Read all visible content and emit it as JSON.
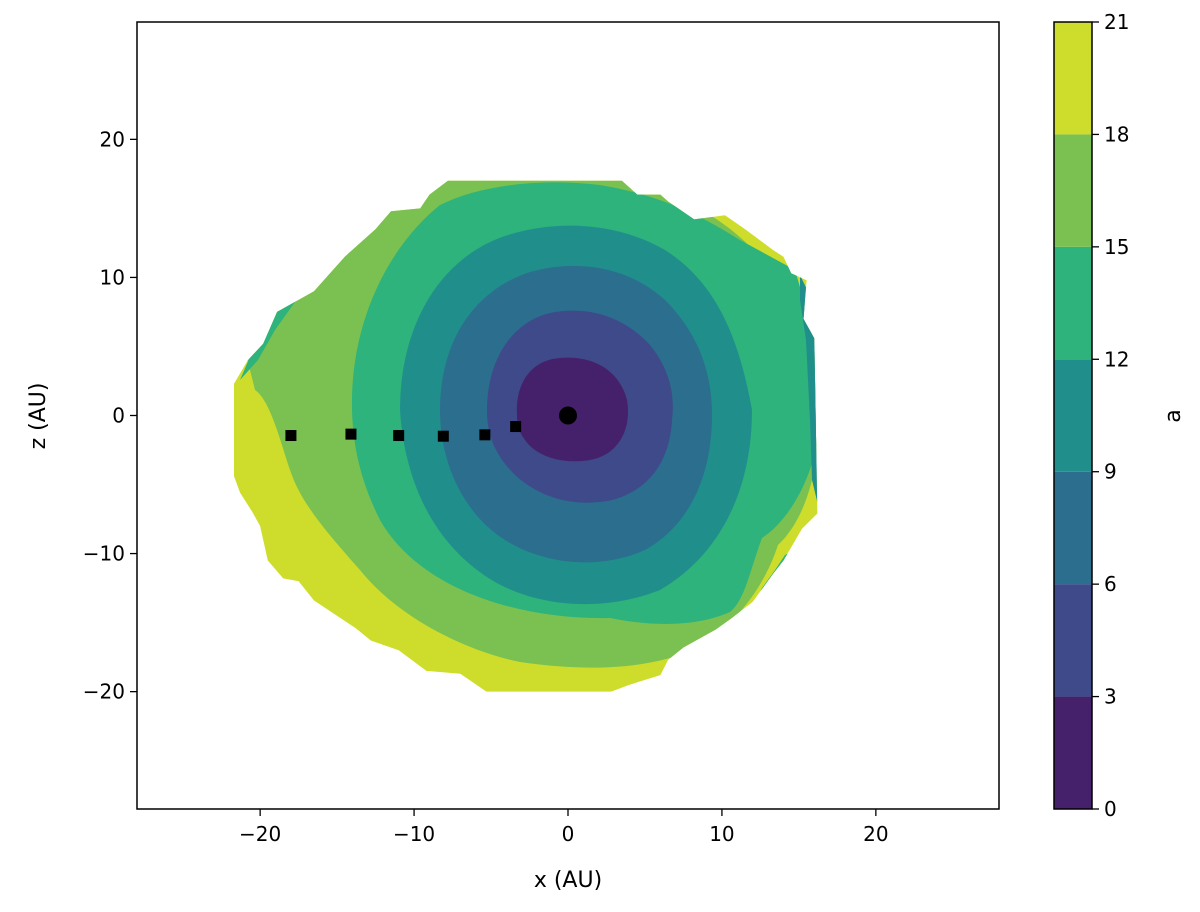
{
  "chart_data": {
    "type": "heatmap",
    "subtype": "filled-contour",
    "xlabel": "x (AU)",
    "ylabel": "z (AU)",
    "xlim": [
      -28,
      28
    ],
    "ylim": [
      -28.5,
      28.5
    ],
    "xticks": [
      -20,
      -10,
      0,
      10,
      20
    ],
    "yticks": [
      -20,
      -10,
      0,
      10,
      20
    ],
    "xtick_labels": [
      "−20",
      "−10",
      "0",
      "10",
      "20"
    ],
    "ytick_labels": [
      "−20",
      "−10",
      "0",
      "10",
      "20"
    ],
    "grid": false,
    "colormap": "viridis",
    "colorbar": {
      "label": "a",
      "levels": [
        0,
        3,
        6,
        9,
        12,
        15,
        18,
        21
      ],
      "tick_labels": [
        "0",
        "3",
        "6",
        "9",
        "12",
        "15",
        "18",
        "21"
      ],
      "colors": [
        "#46216b",
        "#3e4a89",
        "#2c6e8e",
        "#208f8c",
        "#2db37b",
        "#7ac152",
        "#cedd2c"
      ]
    },
    "contour_region": {
      "center": [
        0,
        0
      ],
      "outline": [
        [
          -21.7,
          2.3
        ],
        [
          -20.8,
          4.0
        ],
        [
          -19.8,
          5.2
        ],
        [
          -18.9,
          7.5
        ],
        [
          -16.5,
          9.0
        ],
        [
          -14.5,
          11.5
        ],
        [
          -12.5,
          13.5
        ],
        [
          -11.5,
          14.8
        ],
        [
          -9.6,
          15.0
        ],
        [
          -9.0,
          16.0
        ],
        [
          -7.8,
          17.0
        ],
        [
          3.5,
          17.0
        ],
        [
          4.5,
          16.0
        ],
        [
          6.0,
          16.0
        ],
        [
          6.5,
          15.5
        ],
        [
          8.2,
          14.2
        ],
        [
          10.2,
          14.5
        ],
        [
          11.5,
          13.5
        ],
        [
          13.3,
          12.0
        ],
        [
          14.0,
          11.5
        ],
        [
          14.5,
          10.3
        ],
        [
          15.5,
          9.8
        ],
        [
          15.3,
          7.0
        ],
        [
          16.0,
          5.6
        ],
        [
          16.2,
          -7.1
        ],
        [
          15.2,
          -8.2
        ],
        [
          14.0,
          -10.5
        ],
        [
          13.3,
          -11.5
        ],
        [
          12.0,
          -13.5
        ],
        [
          10.6,
          -14.7
        ],
        [
          9.6,
          -15.5
        ],
        [
          7.5,
          -16.8
        ],
        [
          6.5,
          -17.7
        ],
        [
          6.0,
          -18.8
        ],
        [
          4.0,
          -19.5
        ],
        [
          2.8,
          -20.0
        ],
        [
          -5.3,
          -20.0
        ],
        [
          -7.0,
          -18.7
        ],
        [
          -9.2,
          -18.5
        ],
        [
          -11.0,
          -17.0
        ],
        [
          -12.8,
          -16.3
        ],
        [
          -13.8,
          -15.4
        ],
        [
          -16.5,
          -13.4
        ],
        [
          -17.5,
          -12.0
        ],
        [
          -18.5,
          -11.8
        ],
        [
          -19.5,
          -10.5
        ],
        [
          -20.0,
          -8.0
        ],
        [
          -20.5,
          -7.0
        ],
        [
          -21.3,
          -5.6
        ],
        [
          -21.7,
          -4.4
        ]
      ]
    },
    "contour_bands": [
      {
        "level_min": 18,
        "level_max": 21,
        "note_color": "#cedd2c"
      },
      {
        "level_min": 15,
        "level_max": 18,
        "note_color": "#7ac152"
      },
      {
        "level_min": 12,
        "level_max": 15,
        "note_color": "#2db37b"
      },
      {
        "level_min": 9,
        "level_max": 12,
        "note_color": "#208f8c"
      },
      {
        "level_min": 6,
        "level_max": 9,
        "note_color": "#2c6e8e"
      },
      {
        "level_min": 3,
        "level_max": 6,
        "note_color": "#3e4a89"
      },
      {
        "level_min": 0,
        "level_max": 3,
        "note_color": "#46216b"
      }
    ],
    "series": [
      {
        "marker": "circle",
        "color": "#000000",
        "points": [
          {
            "x": 0,
            "y": 0
          }
        ]
      },
      {
        "marker": "square",
        "color": "#000000",
        "points": [
          {
            "x": -18.0,
            "y": -1.45
          },
          {
            "x": -14.1,
            "y": -1.35
          },
          {
            "x": -11.0,
            "y": -1.45
          },
          {
            "x": -8.1,
            "y": -1.5
          },
          {
            "x": -5.4,
            "y": -1.4
          },
          {
            "x": -3.4,
            "y": -0.8
          }
        ]
      }
    ]
  }
}
